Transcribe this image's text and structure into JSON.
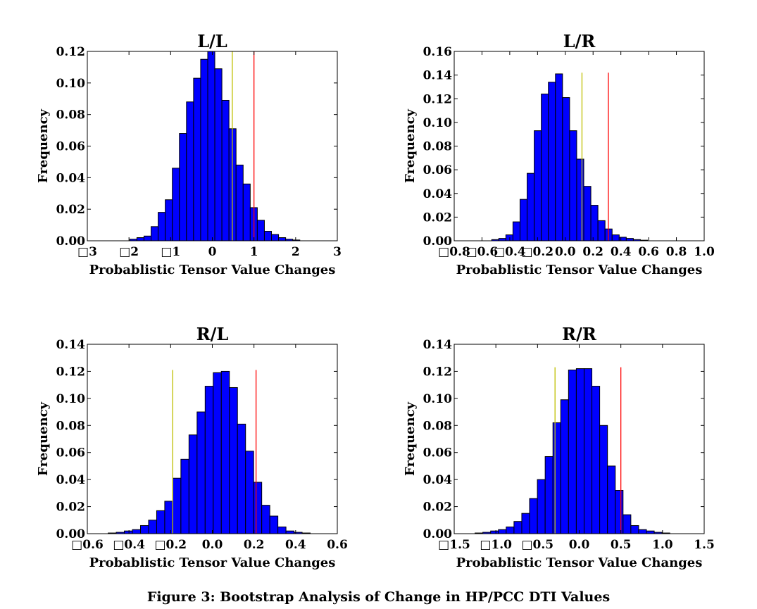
{
  "caption": "Figure 3: Bootstrap Analysis of Change in HP/PCC DTI Values",
  "colors": {
    "bar": "#0000ff",
    "bar_edge": "#000000",
    "line_yellow": "#bfbf00",
    "line_red": "#ff0000"
  },
  "chart_data": [
    {
      "type": "bar",
      "title": "L/L",
      "xlabel": "Probablistic Tensor Value Changes",
      "ylabel": "Frequency",
      "xlim": [
        -3,
        3
      ],
      "ylim": [
        0,
        0.12
      ],
      "xticks": [
        -3,
        -2,
        -1,
        0,
        1,
        2,
        3
      ],
      "xtick_labels": [
        "□3",
        "□2",
        "□1",
        "0",
        "1",
        "2",
        "3"
      ],
      "yticks": [
        0,
        0.02,
        0.04,
        0.06,
        0.08,
        0.1,
        0.12
      ],
      "ytick_labels": [
        "0.00",
        "0.02",
        "0.04",
        "0.06",
        "0.08",
        "0.10",
        "0.12"
      ],
      "bin_start": -1.98,
      "bin_width": 0.17,
      "values": [
        0.001,
        0.002,
        0.003,
        0.009,
        0.018,
        0.026,
        0.046,
        0.068,
        0.088,
        0.103,
        0.115,
        0.12,
        0.109,
        0.089,
        0.071,
        0.048,
        0.036,
        0.021,
        0.013,
        0.006,
        0.004,
        0.002,
        0.001,
        0.0005
      ],
      "vlines": [
        {
          "x": 0.48,
          "ymax": 0.12,
          "color": "yellow"
        },
        {
          "x": 1.0,
          "ymax": 0.12,
          "color": "red"
        }
      ]
    },
    {
      "type": "bar",
      "title": "L/R",
      "xlabel": "Probablistic Tensor Value Changes",
      "ylabel": "Frequency",
      "xlim": [
        -0.8,
        1.0
      ],
      "ylim": [
        0,
        0.16
      ],
      "xticks": [
        -0.8,
        -0.6,
        -0.4,
        -0.2,
        0.0,
        0.2,
        0.4,
        0.6,
        0.8,
        1.0
      ],
      "xtick_labels": [
        "□0.8",
        "□0.6",
        "□0.4",
        "□0.2",
        "0.0",
        "0.2",
        "0.4",
        "0.6",
        "0.8",
        "1.0"
      ],
      "yticks": [
        0,
        0.02,
        0.04,
        0.06,
        0.08,
        0.1,
        0.12,
        0.14,
        0.16
      ],
      "ytick_labels": [
        "0.00",
        "0.02",
        "0.04",
        "0.06",
        "0.08",
        "0.10",
        "0.12",
        "0.14",
        "0.16"
      ],
      "bin_start": -0.53,
      "bin_width": 0.051,
      "values": [
        0.001,
        0.002,
        0.005,
        0.016,
        0.035,
        0.057,
        0.093,
        0.124,
        0.134,
        0.141,
        0.121,
        0.093,
        0.069,
        0.046,
        0.03,
        0.017,
        0.01,
        0.005,
        0.003,
        0.002,
        0.001,
        0.0005
      ],
      "vlines": [
        {
          "x": 0.12,
          "ymax": 0.142,
          "color": "yellow"
        },
        {
          "x": 0.31,
          "ymax": 0.142,
          "color": "red"
        }
      ]
    },
    {
      "type": "bar",
      "title": "R/L",
      "xlabel": "Probablistic Tensor Value Changes",
      "ylabel": "Frequency",
      "xlim": [
        -0.6,
        0.6
      ],
      "ylim": [
        0,
        0.14
      ],
      "xticks": [
        -0.6,
        -0.4,
        -0.2,
        0.0,
        0.2,
        0.4,
        0.6
      ],
      "xtick_labels": [
        "□0.6",
        "□0.4",
        "□0.2",
        "0.0",
        "0.2",
        "0.4",
        "0.6"
      ],
      "yticks": [
        0,
        0.02,
        0.04,
        0.06,
        0.08,
        0.1,
        0.12,
        0.14
      ],
      "ytick_labels": [
        "0.00",
        "0.02",
        "0.04",
        "0.06",
        "0.08",
        "0.10",
        "0.12",
        "0.14"
      ],
      "bin_start": -0.5,
      "bin_width": 0.0388,
      "values": [
        0.0005,
        0.001,
        0.002,
        0.003,
        0.006,
        0.01,
        0.017,
        0.024,
        0.041,
        0.055,
        0.073,
        0.09,
        0.109,
        0.119,
        0.12,
        0.108,
        0.081,
        0.061,
        0.038,
        0.021,
        0.013,
        0.005,
        0.002,
        0.001,
        0.0005
      ],
      "vlines": [
        {
          "x": -0.19,
          "ymax": 0.121,
          "color": "yellow"
        },
        {
          "x": 0.21,
          "ymax": 0.121,
          "color": "red"
        }
      ]
    },
    {
      "type": "bar",
      "title": "R/R",
      "xlabel": "Probablistic Tensor Value Changes",
      "ylabel": "Frequency",
      "xlim": [
        -1.5,
        1.5
      ],
      "ylim": [
        0,
        0.14
      ],
      "xticks": [
        -1.5,
        -1.0,
        -0.5,
        0.0,
        0.5,
        1.0,
        1.5
      ],
      "xtick_labels": [
        "□1.5",
        "□1.0",
        "□0.5",
        "0.0",
        "0.5",
        "1.0",
        "1.5"
      ],
      "yticks": [
        0,
        0.02,
        0.04,
        0.06,
        0.08,
        0.1,
        0.12,
        0.14
      ],
      "ytick_labels": [
        "0.00",
        "0.02",
        "0.04",
        "0.06",
        "0.08",
        "0.10",
        "0.12",
        "0.14"
      ],
      "bin_start": -1.25,
      "bin_width": 0.0935,
      "values": [
        0.0005,
        0.001,
        0.002,
        0.003,
        0.005,
        0.009,
        0.015,
        0.026,
        0.04,
        0.057,
        0.082,
        0.099,
        0.121,
        0.122,
        0.122,
        0.109,
        0.08,
        0.05,
        0.032,
        0.014,
        0.006,
        0.003,
        0.002,
        0.001,
        0.0005
      ],
      "vlines": [
        {
          "x": -0.29,
          "ymax": 0.123,
          "color": "yellow"
        },
        {
          "x": 0.5,
          "ymax": 0.123,
          "color": "red"
        }
      ]
    }
  ]
}
